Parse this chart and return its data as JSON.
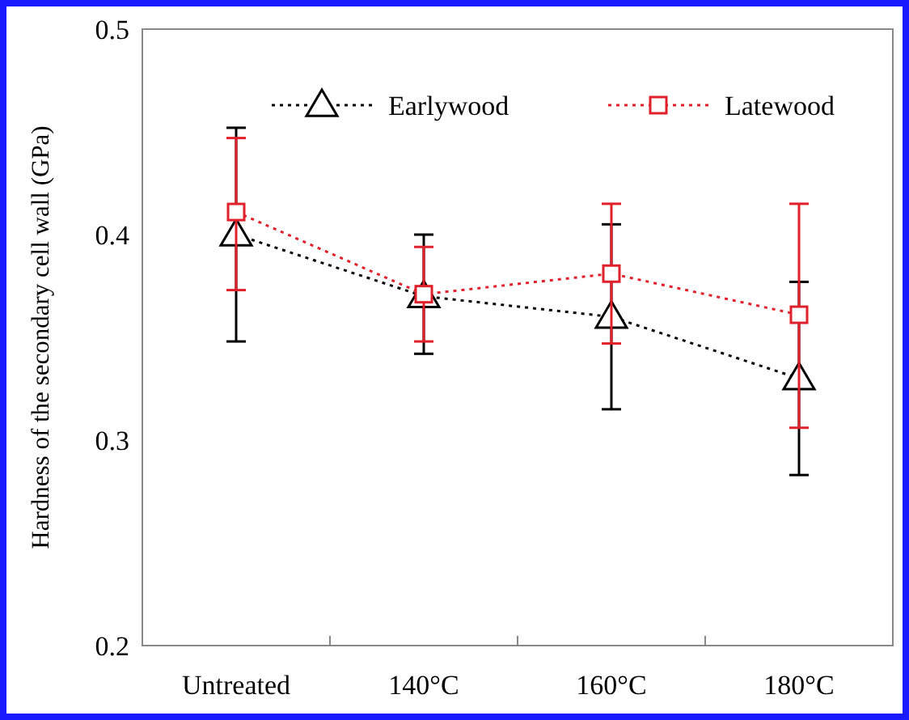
{
  "chart_data": {
    "type": "line",
    "ylabel": "Hardness of the secondary cell wall (GPa)",
    "categories": [
      "Untreated",
      "140°C",
      "160°C",
      "180°C"
    ],
    "ylim": [
      0.2,
      0.5
    ],
    "yticks": [
      0.2,
      0.3,
      0.4,
      0.5
    ],
    "grid": false,
    "legend": "top",
    "line_style": "dotted",
    "series": [
      {
        "name": "Earlywood",
        "color": "#000000",
        "marker": "triangle",
        "values": [
          0.4,
          0.37,
          0.36,
          0.33
        ],
        "errors": [
          [
            0.348,
            0.452
          ],
          [
            0.342,
            0.4
          ],
          [
            0.315,
            0.405
          ],
          [
            0.283,
            0.377
          ]
        ]
      },
      {
        "name": "Latewood",
        "color": "#e0202a",
        "marker": "square",
        "values": [
          0.411,
          0.371,
          0.381,
          0.361
        ],
        "errors": [
          [
            0.373,
            0.447
          ],
          [
            0.348,
            0.394
          ],
          [
            0.347,
            0.415
          ],
          [
            0.306,
            0.415
          ]
        ]
      }
    ]
  }
}
